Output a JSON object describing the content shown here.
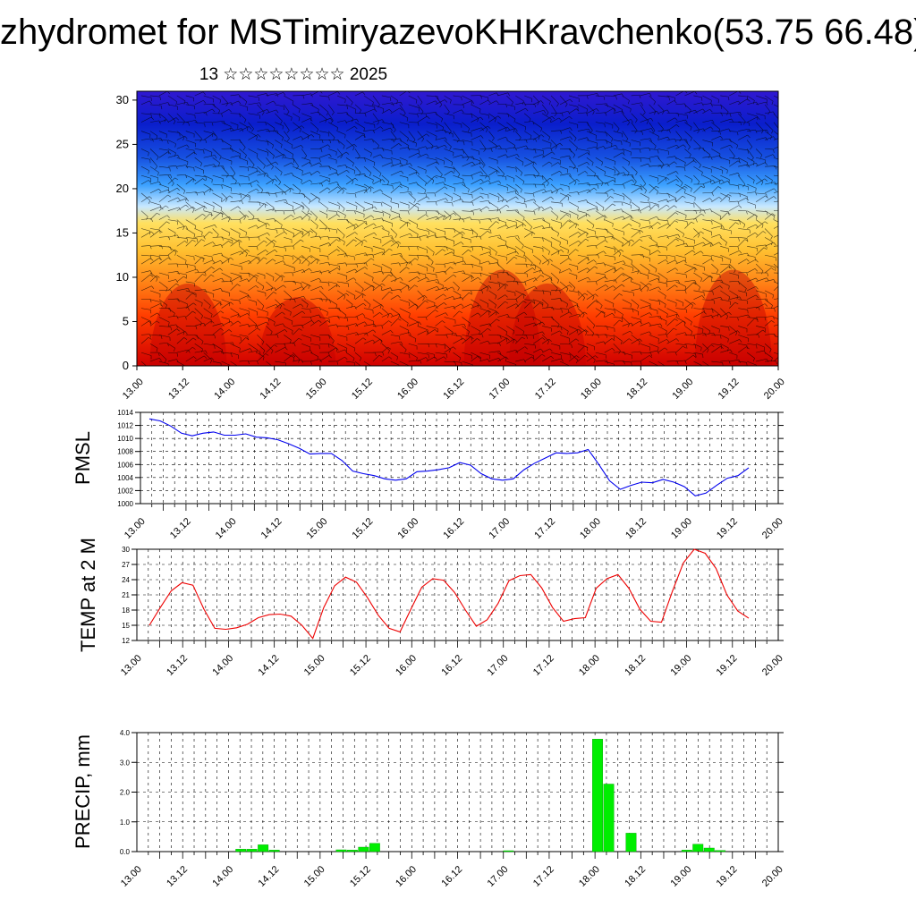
{
  "title": "zhydromet for MSTimiryazevoKHKravchenko(53.75 66.48)",
  "subtitle": "13 ☆☆☆☆☆☆☆☆ 2025",
  "chart_data": [
    {
      "type": "heatmap",
      "panel": "cross-section",
      "x_ticks": [
        "13.00",
        "13.12",
        "14.00",
        "14.12",
        "15.00",
        "15.12",
        "16.00",
        "16.12",
        "17.00",
        "17.12",
        "18.00",
        "18.12",
        "19.00",
        "19.12",
        "20.00"
      ],
      "y_ticks": [
        "0",
        "5",
        "10",
        "15",
        "20",
        "25",
        "30"
      ],
      "ylim": [
        0,
        31
      ],
      "colormap": [
        "#d00000",
        "#ff3c00",
        "#ff8c1a",
        "#ffc030",
        "#ffe060",
        "#c8e8ff",
        "#3aa0ff",
        "#1650e0",
        "#0a1ecc",
        "#3018d0"
      ],
      "overlay": "wind barbs"
    },
    {
      "type": "line",
      "panel": "pmsl",
      "ylabel": "PMSL",
      "ylim": [
        1000,
        1014
      ],
      "y_ticks": [
        "1000",
        "1002",
        "1004",
        "1006",
        "1008",
        "1010",
        "1012",
        "1014"
      ],
      "x_ticks": [
        "13.00",
        "13.12",
        "14.00",
        "14.12",
        "15.00",
        "15.12",
        "16.00",
        "16.12",
        "17.00",
        "17.12",
        "18.00",
        "18.12",
        "19.00",
        "19.12",
        "20.00"
      ],
      "color": "#0000ee",
      "values": [
        1013.0,
        1012.7,
        1011.9,
        1010.8,
        1010.4,
        1010.8,
        1011.0,
        1010.5,
        1010.5,
        1010.7,
        1010.2,
        1010.1,
        1009.8,
        1009.2,
        1008.5,
        1007.6,
        1007.7,
        1007.7,
        1006.6,
        1005.0,
        1004.6,
        1004.3,
        1003.8,
        1003.6,
        1003.8,
        1004.9,
        1005.0,
        1005.2,
        1005.5,
        1006.3,
        1005.9,
        1004.6,
        1003.8,
        1003.6,
        1003.8,
        1005.2,
        1006.2,
        1007.0,
        1007.8,
        1007.7,
        1007.8,
        1008.3,
        1006.0,
        1003.5,
        1002.2,
        1002.8,
        1003.3,
        1003.2,
        1003.7,
        1003.3,
        1002.6,
        1001.2,
        1001.6,
        1002.8,
        1003.9,
        1004.3,
        1005.5
      ],
      "x_start": 13.0,
      "x_step_hours": 3
    },
    {
      "type": "line",
      "panel": "temperature",
      "ylabel": "TEMP at 2 M",
      "ylim": [
        12,
        30
      ],
      "y_ticks": [
        "12",
        "15",
        "18",
        "21",
        "24",
        "27",
        "30"
      ],
      "x_ticks": [
        "13.00",
        "13.12",
        "14.00",
        "14.12",
        "15.00",
        "15.12",
        "16.00",
        "16.12",
        "17.00",
        "17.12",
        "18.00",
        "18.12",
        "19.00",
        "19.12",
        "20.00"
      ],
      "color": "#ee0000",
      "values": [
        15.0,
        18.5,
        21.8,
        23.4,
        22.9,
        18.2,
        14.4,
        14.2,
        14.5,
        15.2,
        16.5,
        17.1,
        17.2,
        16.8,
        15.0,
        12.4,
        18.5,
        22.8,
        24.5,
        23.5,
        20.5,
        17.0,
        14.4,
        13.7,
        18.2,
        22.5,
        24.2,
        23.9,
        21.5,
        18.0,
        14.8,
        16.1,
        19.3,
        23.8,
        24.8,
        25.0,
        22.4,
        18.5,
        15.8,
        16.3,
        16.5,
        22.3,
        24.2,
        25.0,
        22.3,
        18.2,
        15.8,
        15.6,
        21.7,
        27.3,
        30.0,
        29.2,
        26.2,
        21.0,
        17.8,
        16.4
      ],
      "x_start": 13.0,
      "x_step_hours": 3
    },
    {
      "type": "bar",
      "panel": "precipitation",
      "ylabel": "PRECIP, mm",
      "ylim": [
        0,
        4.0
      ],
      "y_ticks": [
        "0.0",
        "1.0",
        "2.0",
        "3.0",
        "4.0"
      ],
      "x_ticks": [
        "13.00",
        "13.12",
        "14.00",
        "14.12",
        "15.00",
        "15.12",
        "16.00",
        "16.12",
        "17.00",
        "17.12",
        "18.00",
        "18.12",
        "19.00",
        "19.12",
        "20.00"
      ],
      "color": "#00ee00",
      "bars": [
        {
          "x": 14.0,
          "value": 0.08
        },
        {
          "x": 14.125,
          "value": 0.08
        },
        {
          "x": 14.25,
          "value": 0.23
        },
        {
          "x": 14.375,
          "value": 0.05
        },
        {
          "x": 15.125,
          "value": 0.06
        },
        {
          "x": 15.25,
          "value": 0.05
        },
        {
          "x": 15.375,
          "value": 0.15
        },
        {
          "x": 15.5,
          "value": 0.28
        },
        {
          "x": 17.0,
          "value": 0.03
        },
        {
          "x": 18.0,
          "value": 3.78
        },
        {
          "x": 18.125,
          "value": 2.27
        },
        {
          "x": 18.375,
          "value": 0.62
        },
        {
          "x": 19.0,
          "value": 0.05
        },
        {
          "x": 19.125,
          "value": 0.25
        },
        {
          "x": 19.25,
          "value": 0.12
        },
        {
          "x": 19.375,
          "value": 0.04
        }
      ]
    }
  ]
}
